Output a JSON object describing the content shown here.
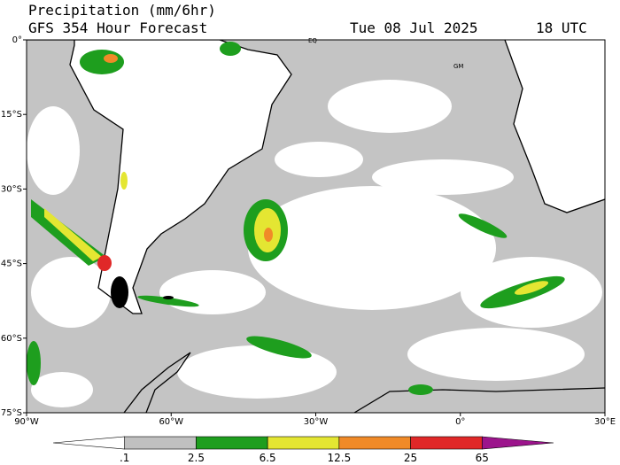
{
  "header": {
    "title": "Precipitation (mm/6hr)",
    "subtitle": "GFS 354 Hour Forecast",
    "date": "Tue 08 Jul 2025",
    "time": "18 UTC"
  },
  "map": {
    "lat_labels": [
      "0°",
      "15°S",
      "30°S",
      "45°S",
      "60°S",
      "75°S"
    ],
    "lon_labels": [
      "90°W",
      "60°W",
      "30°W",
      "0°",
      "30°E"
    ],
    "annotations": [
      "EQ",
      "GM"
    ]
  },
  "colorbar": {
    "labels": [
      ".1",
      "2.5",
      "6.5",
      "12.5",
      "25",
      "65"
    ],
    "colors": [
      "#ffffff",
      "#c0c0c0",
      "#1e9e1e",
      "#e4e632",
      "#f08a28",
      "#e02828",
      "#9c148c"
    ]
  }
}
